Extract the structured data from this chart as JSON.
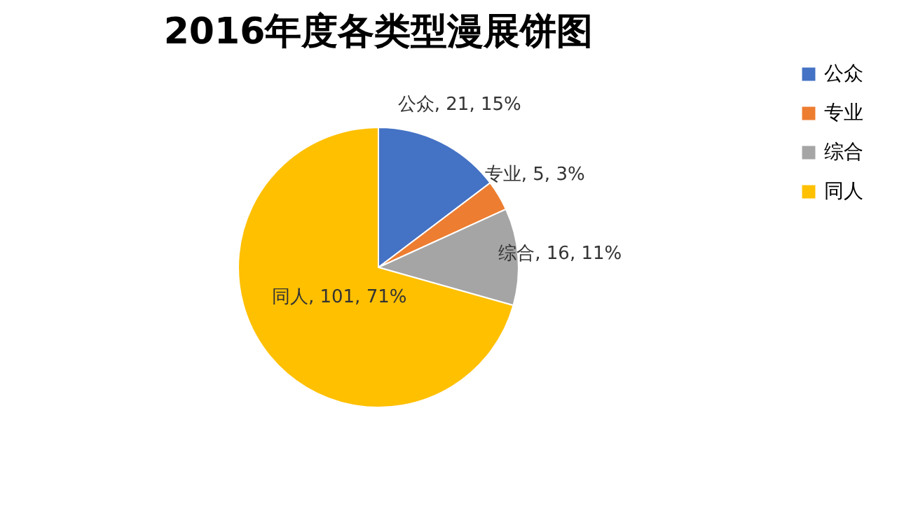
{
  "chart_data": {
    "type": "pie",
    "title": "2016年度各类型漫展饼图",
    "categories": [
      "公众",
      "专业",
      "综合",
      "同人"
    ],
    "values": [
      21,
      5,
      16,
      101
    ],
    "colors": [
      "#4472c4",
      "#ed7d31",
      "#a5a5a5",
      "#ffc000"
    ],
    "value_labels": [
      "公众, 21, 15%",
      "专业, 5, 3%",
      "综合, 16, 11%",
      "同人, 101, 71%"
    ],
    "legend": "right"
  }
}
